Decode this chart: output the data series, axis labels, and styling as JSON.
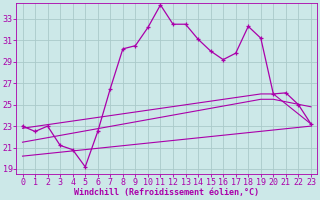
{
  "title": "",
  "xlabel": "Windchill (Refroidissement éolien,°C)",
  "ylabel": "",
  "bg_color": "#cce8e8",
  "grid_color": "#aacaca",
  "line_color": "#aa00aa",
  "xlim": [
    -0.5,
    23.5
  ],
  "ylim": [
    18.5,
    34.5
  ],
  "yticks": [
    19,
    21,
    23,
    25,
    27,
    29,
    31,
    33
  ],
  "xticks": [
    0,
    1,
    2,
    3,
    4,
    5,
    6,
    7,
    8,
    9,
    10,
    11,
    12,
    13,
    14,
    15,
    16,
    17,
    18,
    19,
    20,
    21,
    22,
    23
  ],
  "series1_x": [
    0,
    1,
    2,
    3,
    4,
    5,
    6,
    7,
    8,
    9,
    10,
    11,
    12,
    13,
    14,
    15,
    16,
    17,
    18,
    19,
    20,
    21,
    22,
    23
  ],
  "series1_y": [
    23.0,
    22.5,
    23.0,
    21.2,
    20.8,
    19.2,
    22.5,
    26.5,
    30.2,
    30.5,
    32.2,
    34.3,
    32.5,
    32.5,
    31.1,
    30.0,
    29.2,
    29.8,
    32.3,
    31.2,
    26.0,
    26.1,
    25.0,
    23.2
  ],
  "series2_x": [
    0,
    19,
    20,
    23
  ],
  "series2_y": [
    22.8,
    26.0,
    26.0,
    23.2
  ],
  "series3_x": [
    0,
    19,
    20,
    23
  ],
  "series3_y": [
    21.5,
    25.5,
    25.5,
    24.8
  ],
  "series4_x": [
    0,
    23
  ],
  "series4_y": [
    20.2,
    23.0
  ],
  "font_color": "#aa00aa",
  "font_size": 6,
  "tick_font_size": 6
}
